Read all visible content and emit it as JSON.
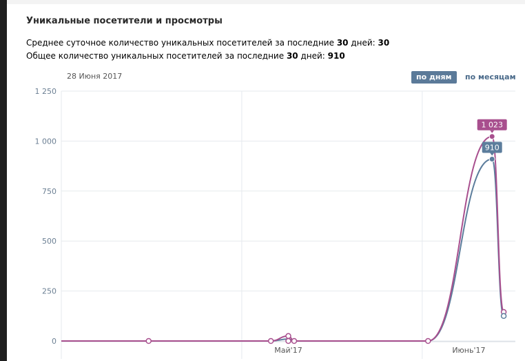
{
  "header": {
    "title": "Уникальные посетители и просмотры",
    "stat1_prefix": "Среднее суточное количество уникальных посетителей за последние ",
    "stat1_days": "30",
    "stat1_mid": " дней: ",
    "stat1_value": "30",
    "stat2_prefix": "Общее количество уникальных посетителей за последние ",
    "stat2_days": "30",
    "stat2_mid": " дней: ",
    "stat2_value": "910"
  },
  "controls": {
    "date_label": "28 Июня 2017",
    "by_days": "по дням",
    "by_months": "по месяцам",
    "active": "по дням"
  },
  "chart_data": {
    "type": "line",
    "ylim": [
      0,
      1250
    ],
    "yticks": [
      0,
      250,
      500,
      750,
      1000,
      1250
    ],
    "ytick_labels": [
      "0",
      "250",
      "500",
      "750",
      "1 000",
      "1 250"
    ],
    "xticks": [
      {
        "label": "Май'17",
        "day": 31
      },
      {
        "label": "Июнь'17",
        "day": 62
      }
    ],
    "xlim": [
      0,
      78
    ],
    "grid": true,
    "series": [
      {
        "color": "#5c7d9c",
        "points": [
          [
            0,
            0
          ],
          [
            15,
            0
          ],
          [
            36,
            0
          ],
          [
            39,
            10
          ],
          [
            40,
            0
          ],
          [
            63,
            0
          ],
          [
            74,
            910
          ],
          [
            76,
            125
          ]
        ],
        "highlight": {
          "day": 74,
          "value": 910,
          "label": "910"
        }
      },
      {
        "color": "#a84f8e",
        "points": [
          [
            0,
            0
          ],
          [
            15,
            0
          ],
          [
            36,
            0
          ],
          [
            39,
            25
          ],
          [
            40,
            0
          ],
          [
            63,
            0
          ],
          [
            74,
            1023
          ],
          [
            76,
            145
          ]
        ],
        "highlight": {
          "day": 74,
          "value": 1023,
          "label": "1 023"
        }
      }
    ],
    "markers": [
      {
        "day": 15,
        "value": 0
      },
      {
        "day": 36,
        "value": 0
      },
      {
        "day": 39,
        "value": 0
      },
      {
        "day": 39,
        "value": 25
      },
      {
        "day": 40,
        "value": 0
      },
      {
        "day": 63,
        "value": 0
      }
    ],
    "end_markers": [
      {
        "day": 76,
        "value": 145,
        "color": "#a84f8e"
      },
      {
        "day": 76,
        "value": 125,
        "color": "#5c7d9c"
      }
    ]
  }
}
